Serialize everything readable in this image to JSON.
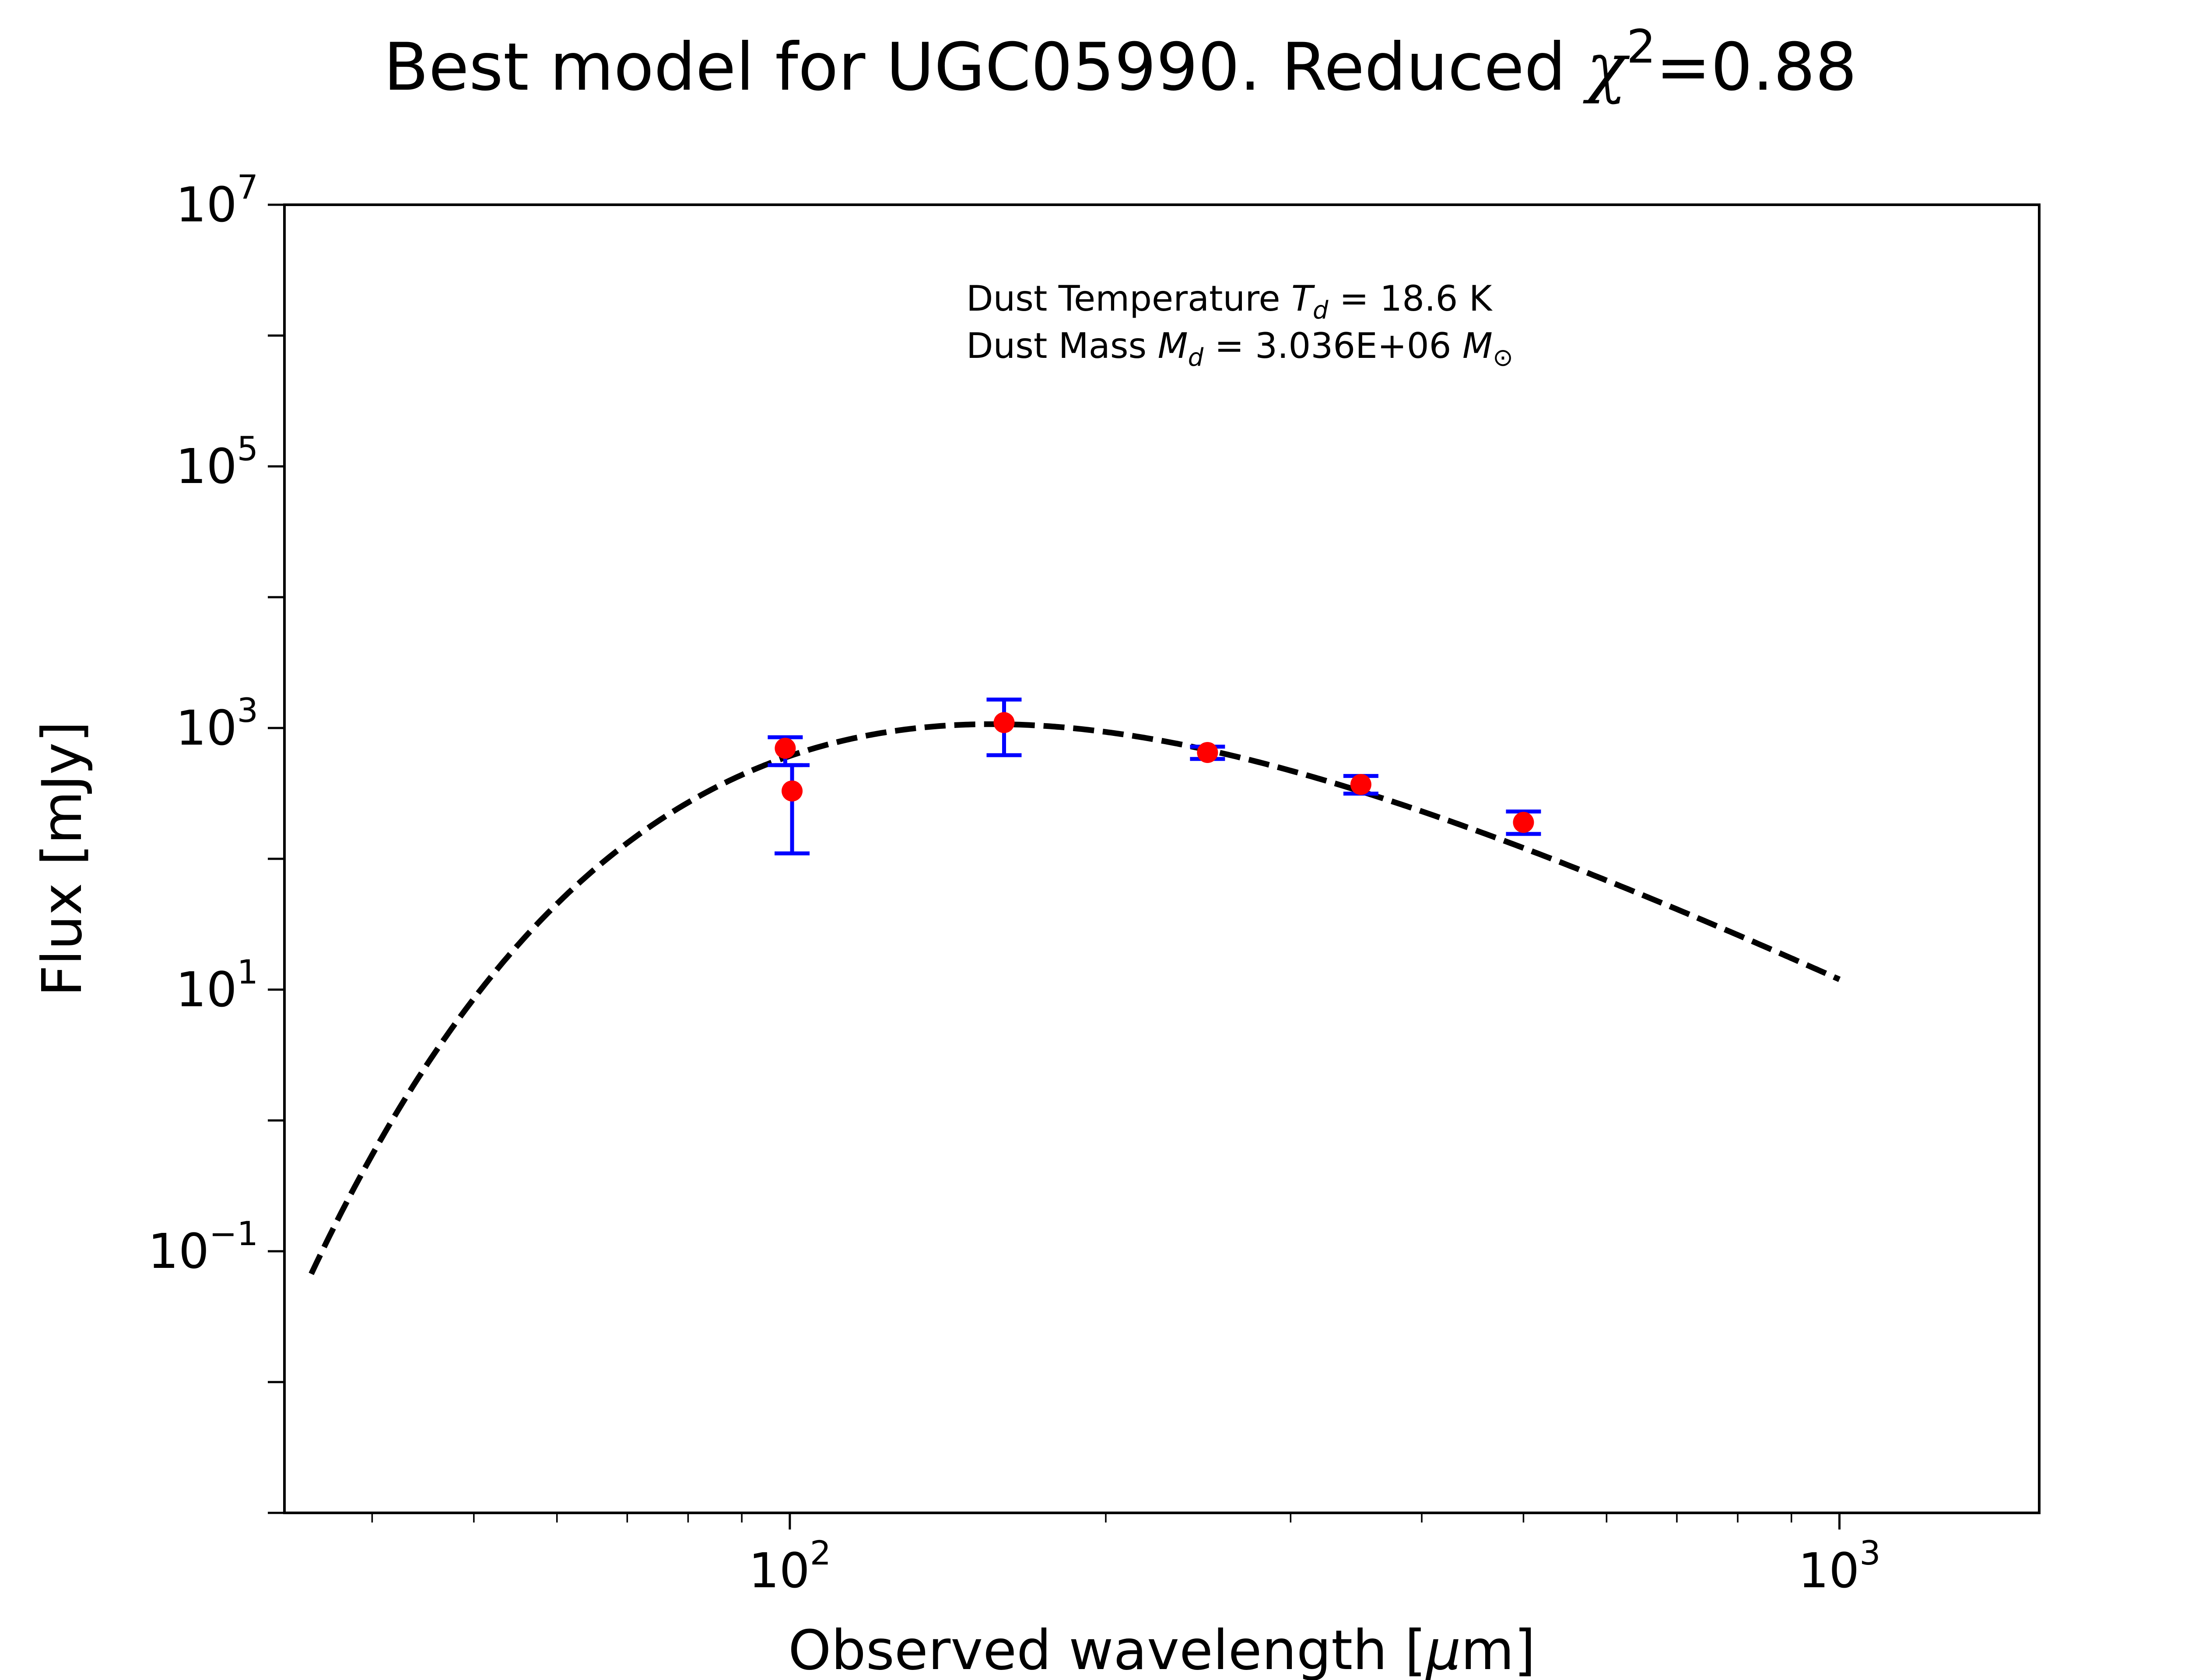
{
  "chart_data": {
    "type": "scatter",
    "title_main": "Best model for UGC05990. Reduced ",
    "title_chi": "χ",
    "title_chi_exp": "2",
    "title_value": "=0.88",
    "xlabel_main": "Observed wavelength [",
    "xlabel_mu": "μ",
    "xlabel_unit": "m]",
    "ylabel": "Flux [mJy]",
    "x_scale": "log",
    "y_scale": "log",
    "xlim": [
      33,
      1550
    ],
    "ylim": [
      0.001,
      10000000
    ],
    "grid": false,
    "x_ticks": [
      {
        "base": "10",
        "exp": "2",
        "value": 100
      },
      {
        "base": "10",
        "exp": "3",
        "value": 1000
      }
    ],
    "y_ticks": [
      {
        "base": "10",
        "exp": "7",
        "value": 10000000
      },
      {
        "base": "10",
        "exp": "5",
        "value": 100000
      },
      {
        "base": "10",
        "exp": "3",
        "value": 1000
      },
      {
        "base": "10",
        "exp": "1",
        "value": 10
      },
      {
        "base": "10",
        "exp": "−1",
        "value": 0.1
      }
    ],
    "annotation": {
      "line1_prefix": "Dust Temperature ",
      "line1_symbol": "T",
      "line1_sub": "d",
      "line1_value": " = 18.6 K",
      "line2_prefix": "Dust Mass ",
      "line2_symbol": "M",
      "line2_sub": "d",
      "line2_value": " = 3.036E+06 ",
      "line2_unit_symbol": "M",
      "line2_unit_sub": "⊙"
    },
    "model": {
      "style": "dashed",
      "color": "#000000",
      "temperature_K": 18.6,
      "beta": 2,
      "peak_flux_mJy": 1070,
      "x_range": [
        35,
        1000
      ]
    },
    "observations": {
      "marker_color": "#ff0000",
      "errorbar_color": "#0000ff",
      "points": [
        {
          "x": 99,
          "y": 700,
          "yerr_low": 520,
          "yerr_high": 850
        },
        {
          "x": 100.5,
          "y": 330,
          "yerr_low": 110,
          "yerr_high": 520
        },
        {
          "x": 160,
          "y": 1100,
          "yerr_low": 620,
          "yerr_high": 1650
        },
        {
          "x": 250,
          "y": 650,
          "yerr_low": 580,
          "yerr_high": 720
        },
        {
          "x": 350,
          "y": 370,
          "yerr_low": 315,
          "yerr_high": 430
        },
        {
          "x": 500,
          "y": 190,
          "yerr_low": 155,
          "yerr_high": 230
        }
      ]
    }
  }
}
